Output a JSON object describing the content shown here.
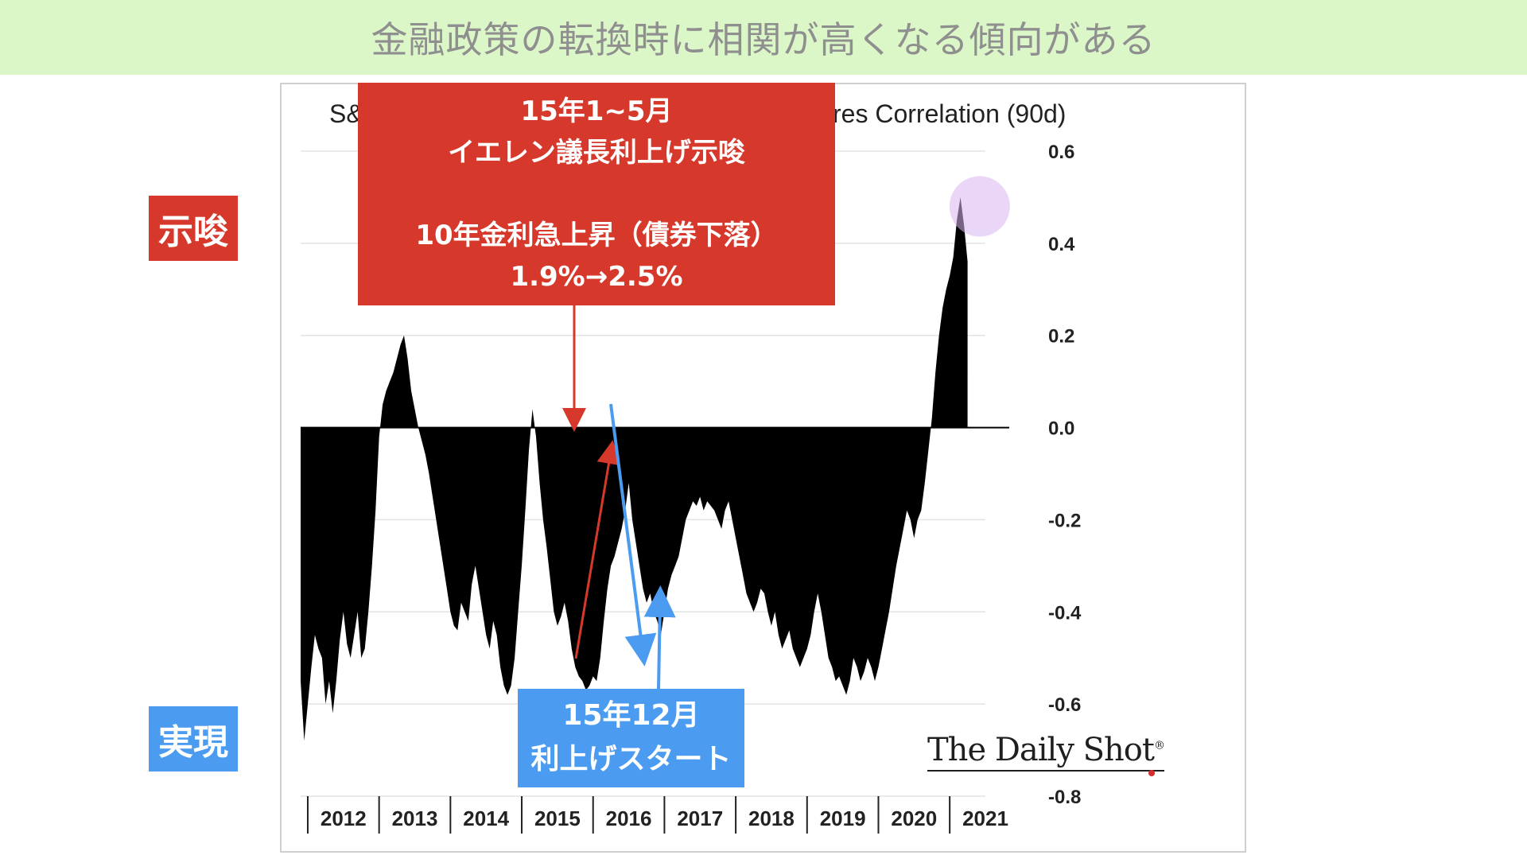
{
  "banner": {
    "text": "金融政策の転換時に相関が高くなる傾向がある"
  },
  "labels": {
    "top": "示唆",
    "bottom": "実現",
    "top_color": "#d6392b",
    "bottom_color": "#4b9cf0"
  },
  "red_box": {
    "line1": "15年1~5月",
    "line2": "イエレン議長利上げ示唆",
    "line3": "10年金利急上昇（債券下落）",
    "line4": "1.9%→2.5%"
  },
  "blue_box": {
    "line1": "15年12月",
    "line2": "利上げスタート"
  },
  "watermark": {
    "text": "The Daily Shot",
    "mark": "®"
  },
  "chart_data": {
    "type": "area",
    "title_visible_left": "S&",
    "title_visible_right": "res Correlation (90d)",
    "xlabel": "",
    "ylabel": "",
    "x_ticks": [
      "2012",
      "2013",
      "2014",
      "2015",
      "2016",
      "2017",
      "2018",
      "2019",
      "2020",
      "2021"
    ],
    "x_range": [
      2011.9,
      2021.5
    ],
    "yticks": [
      "0.6",
      "0.4",
      "0.2",
      "0.0",
      "-0.2",
      "-0.4",
      "-0.6",
      "-0.8"
    ],
    "ylim": [
      -0.8,
      0.6
    ],
    "grid": true,
    "fill_color": "#000000",
    "highlight": {
      "x": 2021.42,
      "y": 0.48,
      "color": "#d8b6f0"
    },
    "series": [
      {
        "points": [
          [
            2011.9,
            -0.55
          ],
          [
            2011.95,
            -0.68
          ],
          [
            2012.0,
            -0.6
          ],
          [
            2012.05,
            -0.52
          ],
          [
            2012.1,
            -0.45
          ],
          [
            2012.15,
            -0.48
          ],
          [
            2012.2,
            -0.5
          ],
          [
            2012.25,
            -0.6
          ],
          [
            2012.3,
            -0.55
          ],
          [
            2012.35,
            -0.62
          ],
          [
            2012.4,
            -0.55
          ],
          [
            2012.45,
            -0.46
          ],
          [
            2012.5,
            -0.4
          ],
          [
            2012.55,
            -0.47
          ],
          [
            2012.6,
            -0.5
          ],
          [
            2012.65,
            -0.45
          ],
          [
            2012.7,
            -0.4
          ],
          [
            2012.75,
            -0.5
          ],
          [
            2012.8,
            -0.48
          ],
          [
            2012.85,
            -0.4
          ],
          [
            2012.9,
            -0.3
          ],
          [
            2012.95,
            -0.18
          ],
          [
            2013.0,
            -0.02
          ],
          [
            2013.05,
            0.05
          ],
          [
            2013.1,
            0.08
          ],
          [
            2013.15,
            0.1
          ],
          [
            2013.2,
            0.12
          ],
          [
            2013.25,
            0.15
          ],
          [
            2013.3,
            0.18
          ],
          [
            2013.35,
            0.2
          ],
          [
            2013.4,
            0.15
          ],
          [
            2013.45,
            0.08
          ],
          [
            2013.5,
            0.04
          ],
          [
            2013.55,
            0.0
          ],
          [
            2013.6,
            -0.03
          ],
          [
            2013.65,
            -0.06
          ],
          [
            2013.7,
            -0.1
          ],
          [
            2013.75,
            -0.15
          ],
          [
            2013.8,
            -0.2
          ],
          [
            2013.85,
            -0.25
          ],
          [
            2013.9,
            -0.3
          ],
          [
            2013.95,
            -0.35
          ],
          [
            2014.0,
            -0.4
          ],
          [
            2014.05,
            -0.43
          ],
          [
            2014.1,
            -0.44
          ],
          [
            2014.15,
            -0.38
          ],
          [
            2014.2,
            -0.4
          ],
          [
            2014.25,
            -0.42
          ],
          [
            2014.3,
            -0.34
          ],
          [
            2014.35,
            -0.3
          ],
          [
            2014.4,
            -0.35
          ],
          [
            2014.45,
            -0.4
          ],
          [
            2014.5,
            -0.45
          ],
          [
            2014.55,
            -0.48
          ],
          [
            2014.6,
            -0.42
          ],
          [
            2014.65,
            -0.45
          ],
          [
            2014.7,
            -0.52
          ],
          [
            2014.75,
            -0.56
          ],
          [
            2014.8,
            -0.58
          ],
          [
            2014.85,
            -0.56
          ],
          [
            2014.9,
            -0.5
          ],
          [
            2014.95,
            -0.4
          ],
          [
            2015.0,
            -0.3
          ],
          [
            2015.05,
            -0.18
          ],
          [
            2015.1,
            -0.05
          ],
          [
            2015.15,
            0.04
          ],
          [
            2015.2,
            -0.02
          ],
          [
            2015.25,
            -0.12
          ],
          [
            2015.3,
            -0.2
          ],
          [
            2015.35,
            -0.26
          ],
          [
            2015.4,
            -0.33
          ],
          [
            2015.45,
            -0.4
          ],
          [
            2015.5,
            -0.43
          ],
          [
            2015.55,
            -0.41
          ],
          [
            2015.6,
            -0.38
          ],
          [
            2015.65,
            -0.42
          ],
          [
            2015.7,
            -0.48
          ],
          [
            2015.75,
            -0.52
          ],
          [
            2015.8,
            -0.54
          ],
          [
            2015.85,
            -0.55
          ],
          [
            2015.9,
            -0.57
          ],
          [
            2015.95,
            -0.56
          ],
          [
            2016.0,
            -0.54
          ],
          [
            2016.05,
            -0.55
          ],
          [
            2016.1,
            -0.5
          ],
          [
            2016.15,
            -0.42
          ],
          [
            2016.2,
            -0.35
          ],
          [
            2016.25,
            -0.3
          ],
          [
            2016.3,
            -0.28
          ],
          [
            2016.35,
            -0.25
          ],
          [
            2016.4,
            -0.22
          ],
          [
            2016.45,
            -0.18
          ],
          [
            2016.5,
            -0.12
          ],
          [
            2016.55,
            -0.2
          ],
          [
            2016.6,
            -0.25
          ],
          [
            2016.65,
            -0.3
          ],
          [
            2016.7,
            -0.35
          ],
          [
            2016.75,
            -0.38
          ],
          [
            2016.8,
            -0.36
          ],
          [
            2016.85,
            -0.4
          ],
          [
            2016.9,
            -0.42
          ],
          [
            2016.95,
            -0.45
          ],
          [
            2017.0,
            -0.4
          ],
          [
            2017.05,
            -0.35
          ],
          [
            2017.1,
            -0.32
          ],
          [
            2017.15,
            -0.3
          ],
          [
            2017.2,
            -0.28
          ],
          [
            2017.25,
            -0.24
          ],
          [
            2017.3,
            -0.2
          ],
          [
            2017.35,
            -0.18
          ],
          [
            2017.4,
            -0.16
          ],
          [
            2017.45,
            -0.17
          ],
          [
            2017.5,
            -0.15
          ],
          [
            2017.55,
            -0.18
          ],
          [
            2017.6,
            -0.16
          ],
          [
            2017.65,
            -0.17
          ],
          [
            2017.7,
            -0.18
          ],
          [
            2017.75,
            -0.2
          ],
          [
            2017.8,
            -0.22
          ],
          [
            2017.85,
            -0.18
          ],
          [
            2017.9,
            -0.16
          ],
          [
            2017.95,
            -0.2
          ],
          [
            2018.0,
            -0.24
          ],
          [
            2018.05,
            -0.28
          ],
          [
            2018.1,
            -0.32
          ],
          [
            2018.15,
            -0.36
          ],
          [
            2018.2,
            -0.38
          ],
          [
            2018.25,
            -0.4
          ],
          [
            2018.3,
            -0.38
          ],
          [
            2018.35,
            -0.35
          ],
          [
            2018.4,
            -0.36
          ],
          [
            2018.45,
            -0.4
          ],
          [
            2018.5,
            -0.43
          ],
          [
            2018.55,
            -0.4
          ],
          [
            2018.6,
            -0.45
          ],
          [
            2018.65,
            -0.48
          ],
          [
            2018.7,
            -0.46
          ],
          [
            2018.75,
            -0.44
          ],
          [
            2018.8,
            -0.48
          ],
          [
            2018.85,
            -0.5
          ],
          [
            2018.9,
            -0.52
          ],
          [
            2018.95,
            -0.5
          ],
          [
            2019.0,
            -0.48
          ],
          [
            2019.05,
            -0.45
          ],
          [
            2019.1,
            -0.4
          ],
          [
            2019.15,
            -0.36
          ],
          [
            2019.2,
            -0.4
          ],
          [
            2019.25,
            -0.45
          ],
          [
            2019.3,
            -0.5
          ],
          [
            2019.35,
            -0.52
          ],
          [
            2019.4,
            -0.55
          ],
          [
            2019.45,
            -0.54
          ],
          [
            2019.5,
            -0.56
          ],
          [
            2019.55,
            -0.58
          ],
          [
            2019.6,
            -0.55
          ],
          [
            2019.65,
            -0.5
          ],
          [
            2019.7,
            -0.52
          ],
          [
            2019.75,
            -0.55
          ],
          [
            2019.8,
            -0.53
          ],
          [
            2019.85,
            -0.5
          ],
          [
            2019.9,
            -0.52
          ],
          [
            2019.95,
            -0.55
          ],
          [
            2020.0,
            -0.52
          ],
          [
            2020.05,
            -0.48
          ],
          [
            2020.1,
            -0.44
          ],
          [
            2020.15,
            -0.4
          ],
          [
            2020.2,
            -0.35
          ],
          [
            2020.25,
            -0.3
          ],
          [
            2020.3,
            -0.26
          ],
          [
            2020.35,
            -0.22
          ],
          [
            2020.4,
            -0.18
          ],
          [
            2020.45,
            -0.2
          ],
          [
            2020.5,
            -0.24
          ],
          [
            2020.55,
            -0.2
          ],
          [
            2020.6,
            -0.18
          ],
          [
            2020.65,
            -0.12
          ],
          [
            2020.7,
            -0.05
          ],
          [
            2020.75,
            0.02
          ],
          [
            2020.8,
            0.12
          ],
          [
            2020.85,
            0.2
          ],
          [
            2020.9,
            0.26
          ],
          [
            2020.95,
            0.3
          ],
          [
            2021.0,
            0.33
          ],
          [
            2021.05,
            0.37
          ],
          [
            2021.1,
            0.45
          ],
          [
            2021.15,
            0.5
          ],
          [
            2021.2,
            0.44
          ],
          [
            2021.25,
            0.36
          ]
        ]
      }
    ]
  }
}
